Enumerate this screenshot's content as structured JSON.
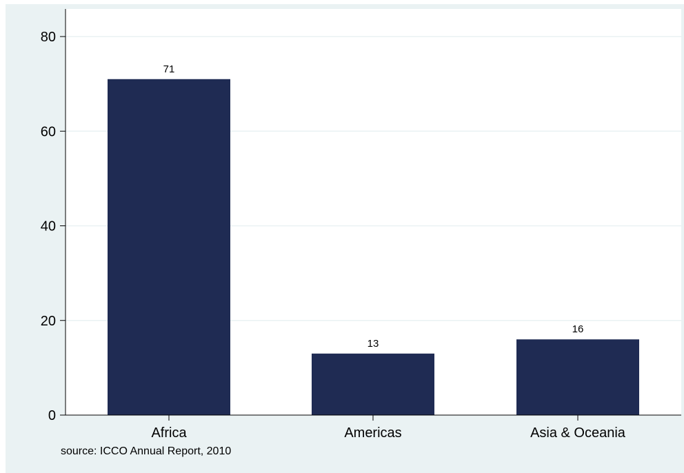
{
  "colors": {
    "background": "#ffffff",
    "panel": "#eaf2f3",
    "bar": "#1f2b53",
    "title": "#1f1fe0",
    "grid": "#ffffff",
    "axis": "#000000"
  },
  "source_note": "source: ICCO Annual Report, 2010",
  "chart_data": {
    "type": "bar",
    "title": "",
    "xlabel": "",
    "ylabel": "",
    "categories": [
      "Africa",
      "Americas",
      "Asia & Oceania"
    ],
    "values": [
      71,
      13,
      16
    ],
    "value_labels": [
      "71",
      "13",
      "16"
    ],
    "ylim": [
      0,
      80
    ],
    "yticks": [
      0,
      20,
      40,
      60,
      80
    ],
    "grid": true,
    "legend": "none"
  }
}
